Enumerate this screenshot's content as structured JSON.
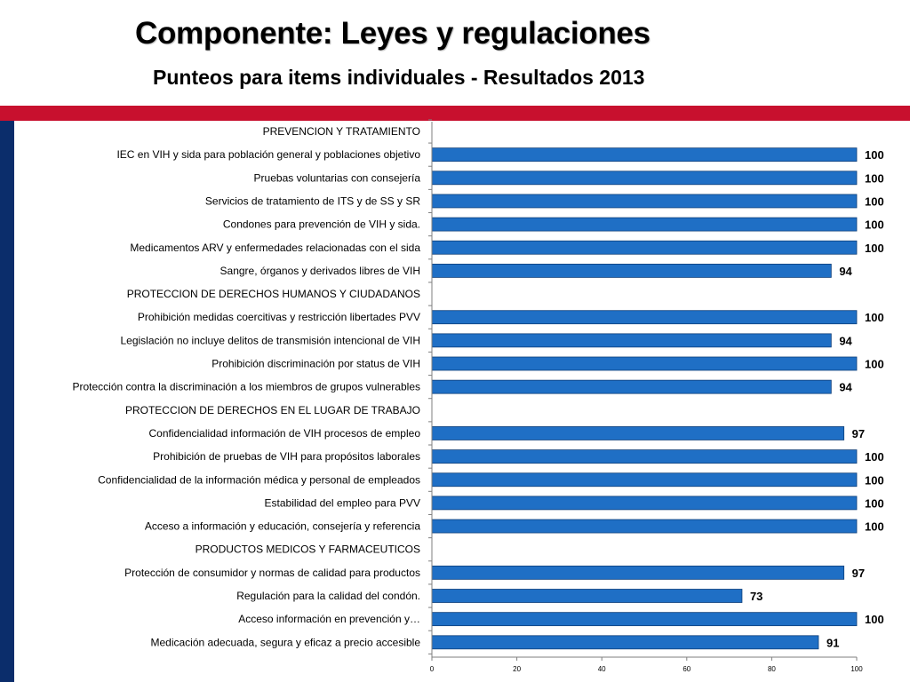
{
  "slide": {
    "title": "Componente: Leyes y regulaciones",
    "subtitle": "Punteos para items individuales - Resultados 2013"
  },
  "colors": {
    "accent_bar": "#c8102e",
    "side_bar": "#0b2d6b",
    "bar_fill": "#1f6fc5",
    "bar_stroke": "#0e3f7a",
    "axis": "#7f7f7f"
  },
  "chart_data": {
    "type": "bar",
    "orientation": "horizontal",
    "categories": [
      "PREVENCION Y TRATAMIENTO",
      "IEC en VIH y sida para población general y poblaciones objetivo",
      "Pruebas voluntarias con consejería",
      "Servicios de tratamiento de ITS y de SS y SR",
      "Condones para prevención de VIH y sida.",
      "Medicamentos ARV y enfermedades relacionadas con el sida",
      "Sangre, órganos y derivados libres de VIH",
      "PROTECCION DE DERECHOS HUMANOS Y CIUDADANOS",
      "Prohibición medidas coercitivas y restricción libertades PVV",
      "Legislación no incluye delitos de transmisión intencional de VIH",
      "Prohibición discriminación por status de VIH",
      "Protección contra la discriminación a los miembros de grupos vulnerables",
      "PROTECCION DE DERECHOS EN EL LUGAR DE TRABAJO",
      "Confidencialidad información de VIH procesos de empleo",
      "Prohibición de pruebas de VIH para propósitos laborales",
      "Confidencialidad de la información médica y personal de empleados",
      "Estabilidad del empleo para PVV",
      "Acceso a información y educación, consejería y referencia",
      "PRODUCTOS MEDICOS Y FARMACEUTICOS",
      "Protección de consumidor y normas de calidad para productos",
      "Regulación para la calidad del condón.",
      "Acceso información en prevención y…",
      "Medicación adecuada, segura y eficaz a precio accesible"
    ],
    "values": [
      null,
      100,
      100,
      100,
      100,
      100,
      94,
      null,
      100,
      94,
      100,
      94,
      null,
      97,
      100,
      100,
      100,
      100,
      null,
      97,
      73,
      100,
      91
    ],
    "value_labels": [
      "",
      "100",
      "100",
      "100",
      "100",
      "100",
      "94",
      "",
      "100",
      "94",
      "100",
      "94",
      "",
      "97",
      "100",
      "100",
      "100",
      "100",
      "",
      "97",
      "73",
      "100",
      "91"
    ],
    "xlim": [
      0,
      100
    ],
    "xticks": [
      0,
      20,
      40,
      60,
      80,
      100
    ],
    "xtick_labels": [
      "0",
      "20",
      "40",
      "60",
      "80",
      "100"
    ],
    "grid": false,
    "legend": "none"
  }
}
